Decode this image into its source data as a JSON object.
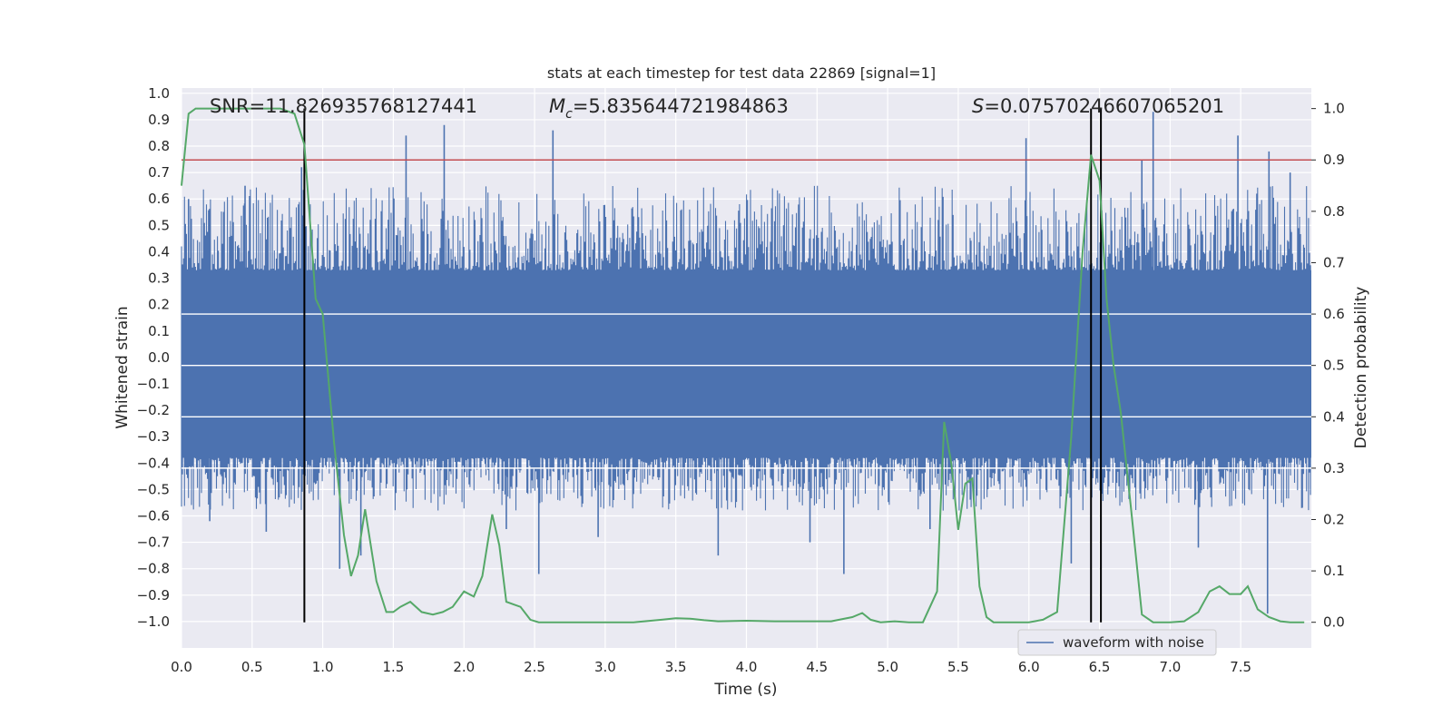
{
  "chart_data": {
    "type": "line",
    "title": "stats at each timestep for test data 22869 [signal=1]",
    "xlabel": "Time (s)",
    "ylabel": "Whitened strain",
    "y2label": "Detection probability",
    "xlim": [
      0.0,
      8.0
    ],
    "ylim": [
      -1.1,
      1.02
    ],
    "y2lim": [
      -0.05,
      1.04
    ],
    "xticks": [
      "0.0",
      "0.5",
      "1.0",
      "1.5",
      "2.0",
      "2.5",
      "3.0",
      "3.5",
      "4.0",
      "4.5",
      "5.0",
      "5.5",
      "6.0",
      "6.5",
      "7.0",
      "7.5"
    ],
    "yticks": [
      "1.0",
      "0.9",
      "0.8",
      "0.7",
      "0.6",
      "0.5",
      "0.4",
      "0.3",
      "0.2",
      "0.1",
      "0.0",
      "−0.1",
      "−0.2",
      "−0.3",
      "−0.4",
      "−0.5",
      "−0.6",
      "−0.7",
      "−0.8",
      "−0.9",
      "−1.0"
    ],
    "y2ticks": [
      "1.0",
      "0.9",
      "0.8",
      "0.7",
      "0.6",
      "0.5",
      "0.4",
      "0.3",
      "0.2",
      "0.1",
      "0.0"
    ],
    "annotations": {
      "snr": "SNR=11.826935768127441",
      "mc_symbol": "M",
      "mc_sub": "c",
      "mc_value": "=5.835644721984863",
      "s_symbol": "S",
      "s_value": "=0.07570246607065201"
    },
    "threshold_y2": 0.9,
    "vertical_lines_x": [
      0.87,
      6.44,
      6.51
    ],
    "legend": {
      "label": "waveform with noise",
      "location": "lower-right"
    },
    "series": [
      {
        "name": "waveform with noise",
        "color": "#4c72b0",
        "style": "noise band approx ±0.35 with spikes",
        "spikes": [
          [
            0.05,
            0.6
          ],
          [
            0.2,
            -0.62
          ],
          [
            0.45,
            0.65
          ],
          [
            0.6,
            -0.66
          ],
          [
            0.85,
            0.72
          ],
          [
            1.12,
            -0.8
          ],
          [
            1.27,
            -0.75
          ],
          [
            1.59,
            0.84
          ],
          [
            1.86,
            0.88
          ],
          [
            2.3,
            -0.65
          ],
          [
            2.53,
            -0.82
          ],
          [
            2.63,
            0.86
          ],
          [
            2.95,
            -0.68
          ],
          [
            3.8,
            -0.75
          ],
          [
            4.45,
            -0.7
          ],
          [
            4.69,
            -0.82
          ],
          [
            5.3,
            -0.65
          ],
          [
            5.98,
            0.83
          ],
          [
            6.3,
            -0.78
          ],
          [
            6.8,
            0.75
          ],
          [
            6.88,
            0.93
          ],
          [
            7.2,
            -0.72
          ],
          [
            7.48,
            0.84
          ],
          [
            7.69,
            -0.97
          ],
          [
            7.7,
            0.78
          ],
          [
            7.85,
            0.7
          ]
        ]
      },
      {
        "name": "Detection probability",
        "color": "#55a868",
        "axis": "y2",
        "x": [
          0.0,
          0.05,
          0.1,
          0.2,
          0.3,
          0.4,
          0.5,
          0.6,
          0.7,
          0.8,
          0.87,
          0.95,
          1.0,
          1.08,
          1.15,
          1.2,
          1.25,
          1.3,
          1.38,
          1.45,
          1.5,
          1.55,
          1.62,
          1.7,
          1.78,
          1.85,
          1.92,
          2.0,
          2.07,
          2.13,
          2.2,
          2.25,
          2.3,
          2.35,
          2.4,
          2.47,
          2.53,
          2.6,
          2.7,
          2.8,
          3.0,
          3.2,
          3.4,
          3.5,
          3.6,
          3.7,
          3.8,
          4.0,
          4.2,
          4.4,
          4.6,
          4.75,
          4.82,
          4.88,
          4.95,
          5.05,
          5.15,
          5.25,
          5.35,
          5.4,
          5.45,
          5.5,
          5.55,
          5.6,
          5.65,
          5.7,
          5.75,
          5.82,
          5.9,
          6.0,
          6.1,
          6.2,
          6.3,
          6.38,
          6.44,
          6.5,
          6.55,
          6.6,
          6.65,
          6.72,
          6.8,
          6.88,
          6.95,
          7.0,
          7.1,
          7.2,
          7.28,
          7.35,
          7.42,
          7.5,
          7.55,
          7.62,
          7.7,
          7.78,
          7.85,
          7.95
        ],
        "y": [
          0.85,
          0.99,
          1.0,
          1.0,
          1.0,
          1.0,
          1.0,
          1.0,
          1.0,
          0.99,
          0.93,
          0.63,
          0.6,
          0.35,
          0.17,
          0.09,
          0.13,
          0.22,
          0.08,
          0.02,
          0.02,
          0.03,
          0.04,
          0.02,
          0.015,
          0.02,
          0.03,
          0.06,
          0.05,
          0.09,
          0.21,
          0.15,
          0.04,
          0.035,
          0.03,
          0.005,
          0.0,
          0.0,
          0.0,
          0.0,
          0.0,
          0.0,
          0.005,
          0.008,
          0.007,
          0.004,
          0.002,
          0.003,
          0.002,
          0.002,
          0.002,
          0.01,
          0.018,
          0.005,
          0.0,
          0.002,
          0.0,
          0.0,
          0.06,
          0.39,
          0.31,
          0.18,
          0.27,
          0.28,
          0.07,
          0.01,
          0.0,
          0.0,
          0.0,
          0.0,
          0.005,
          0.02,
          0.36,
          0.72,
          0.91,
          0.86,
          0.63,
          0.5,
          0.41,
          0.23,
          0.015,
          0.0,
          0.0,
          0.0,
          0.002,
          0.02,
          0.06,
          0.07,
          0.055,
          0.055,
          0.07,
          0.025,
          0.01,
          0.002,
          0.0,
          0.0
        ]
      }
    ]
  }
}
